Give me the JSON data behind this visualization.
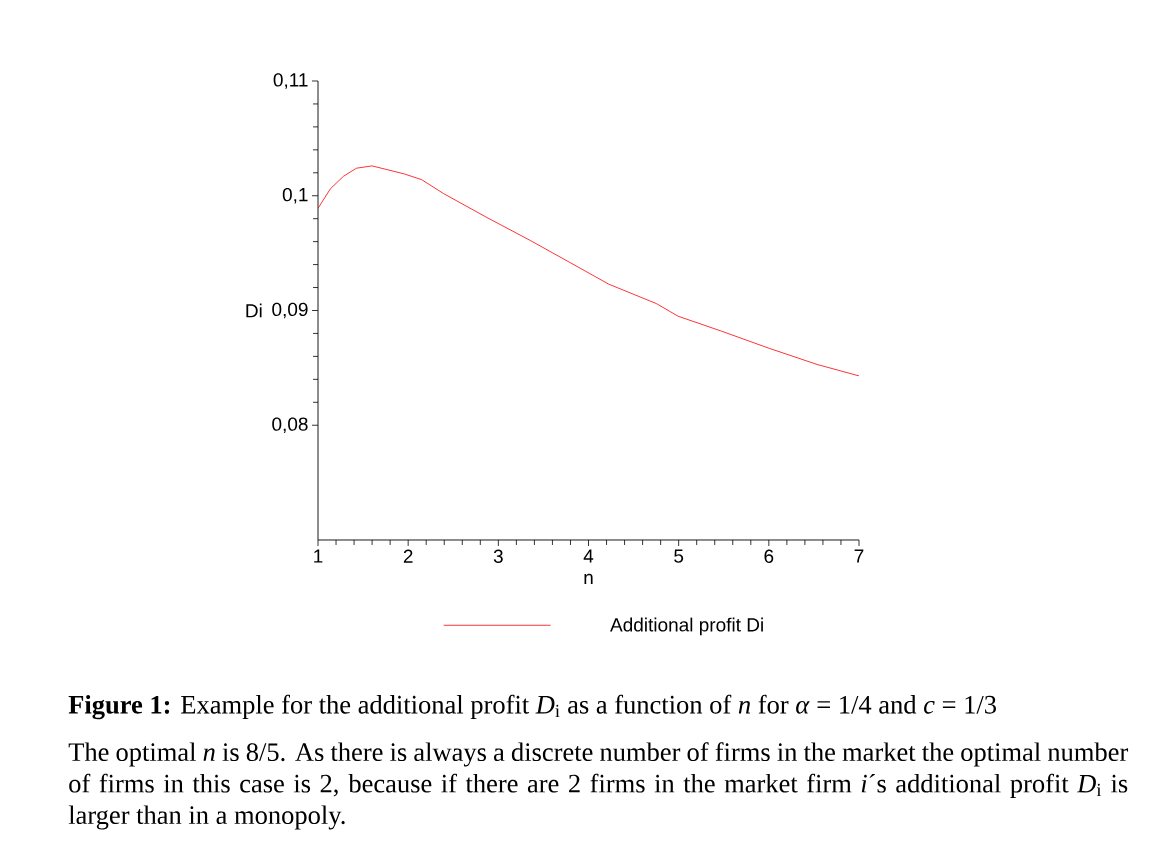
{
  "chart_data": {
    "type": "line",
    "xlabel": "n",
    "ylabel": "Di",
    "x": [
      1,
      1.137,
      1.283,
      1.427,
      1.6,
      1.957,
      2.15,
      2.39,
      2.874,
      3.355,
      3.79,
      4.223,
      4.753,
      4.994,
      5.475,
      6.005,
      6.534,
      7
    ],
    "series": [
      {
        "name": "Additional profit Di",
        "color": "#ff0000",
        "values": [
          0.0989,
          0.1006,
          0.1017,
          0.1024,
          0.1026,
          0.1019,
          0.1014,
          0.1002,
          0.0981,
          0.0961,
          0.0942,
          0.0923,
          0.0906,
          0.0895,
          0.0882,
          0.0867,
          0.0853,
          0.0843
        ]
      }
    ],
    "xlim": [
      1,
      7
    ],
    "ylim": [
      0.07,
      0.11
    ],
    "xticks": [
      1,
      2,
      3,
      4,
      5,
      6,
      7
    ],
    "yticks": [
      {
        "value": 0.08,
        "label": "0,08"
      },
      {
        "value": 0.09,
        "label": "0,09"
      },
      {
        "value": 0.1,
        "label": "0,1"
      },
      {
        "value": 0.11,
        "label": "0,11"
      }
    ],
    "legend": "bottom",
    "marker": "none",
    "line_style": "solid",
    "annotations": [
      "**Figure 1:** Example for the additional profit *D*$_{i}$ as a function of *n* for *α* = 1/4 and *c* = 1/3",
      "The optimal *n* is 8/5. As there is always a discrete number of firms in the market the optimal number of firms in this case is 2, because if there are 2 firms in the market firm *i*´s additional profit *D*$_{i}$ is larger than in a monopoly."
    ]
  }
}
